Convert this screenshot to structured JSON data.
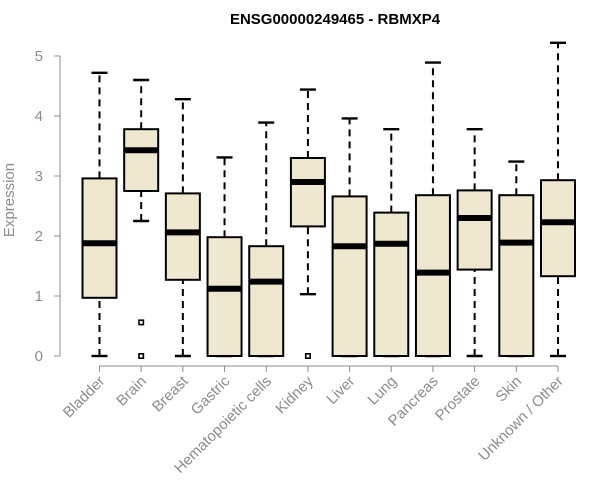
{
  "chart_data": {
    "type": "boxplot",
    "title": "ENSG00000249465 - RBMXP4",
    "xlabel": "",
    "ylabel": "Expression",
    "ylim": [
      0,
      5
    ],
    "yticks": [
      "0",
      "1",
      "2",
      "3",
      "4",
      "5"
    ],
    "box_fill": "#efe8d0",
    "categories": [
      "Bladder",
      "Brain",
      "Breast",
      "Gastric",
      "Hematopoietic cells",
      "Kidney",
      "Liver",
      "Lung",
      "Pancreas",
      "Prostate",
      "Skin",
      "Unknown / Other"
    ],
    "boxes": [
      {
        "name": "Bladder",
        "min": 0,
        "q1": 0.97,
        "median": 1.88,
        "q3": 2.96,
        "max": 4.72,
        "outliers": []
      },
      {
        "name": "Brain",
        "min": 2.25,
        "q1": 2.75,
        "median": 3.43,
        "q3": 3.78,
        "max": 4.6,
        "outliers": [
          0.0,
          0.56
        ]
      },
      {
        "name": "Breast",
        "min": 0,
        "q1": 1.27,
        "median": 2.06,
        "q3": 2.71,
        "max": 4.28,
        "outliers": []
      },
      {
        "name": "Gastric",
        "min": 0,
        "q1": 0,
        "median": 1.12,
        "q3": 1.98,
        "max": 3.31,
        "outliers": []
      },
      {
        "name": "Hematopoietic cells",
        "min": 0,
        "q1": 0,
        "median": 1.24,
        "q3": 1.83,
        "max": 3.89,
        "outliers": []
      },
      {
        "name": "Kidney",
        "min": 1.03,
        "q1": 2.16,
        "median": 2.9,
        "q3": 3.3,
        "max": 4.44,
        "outliers": [
          0.0
        ]
      },
      {
        "name": "Liver",
        "min": 0,
        "q1": 0,
        "median": 1.83,
        "q3": 2.66,
        "max": 3.96,
        "outliers": []
      },
      {
        "name": "Lung",
        "min": 0,
        "q1": 0,
        "median": 1.87,
        "q3": 2.39,
        "max": 3.78,
        "outliers": []
      },
      {
        "name": "Pancreas",
        "min": 0,
        "q1": 0,
        "median": 1.39,
        "q3": 2.68,
        "max": 4.89,
        "outliers": []
      },
      {
        "name": "Prostate",
        "min": 0,
        "q1": 1.44,
        "median": 2.3,
        "q3": 2.76,
        "max": 3.78,
        "outliers": []
      },
      {
        "name": "Skin",
        "min": 0,
        "q1": 0,
        "median": 1.89,
        "q3": 2.68,
        "max": 3.24,
        "outliers": []
      },
      {
        "name": "Unknown / Other",
        "min": 0,
        "q1": 1.33,
        "median": 2.23,
        "q3": 2.93,
        "max": 5.22,
        "outliers": []
      }
    ]
  }
}
